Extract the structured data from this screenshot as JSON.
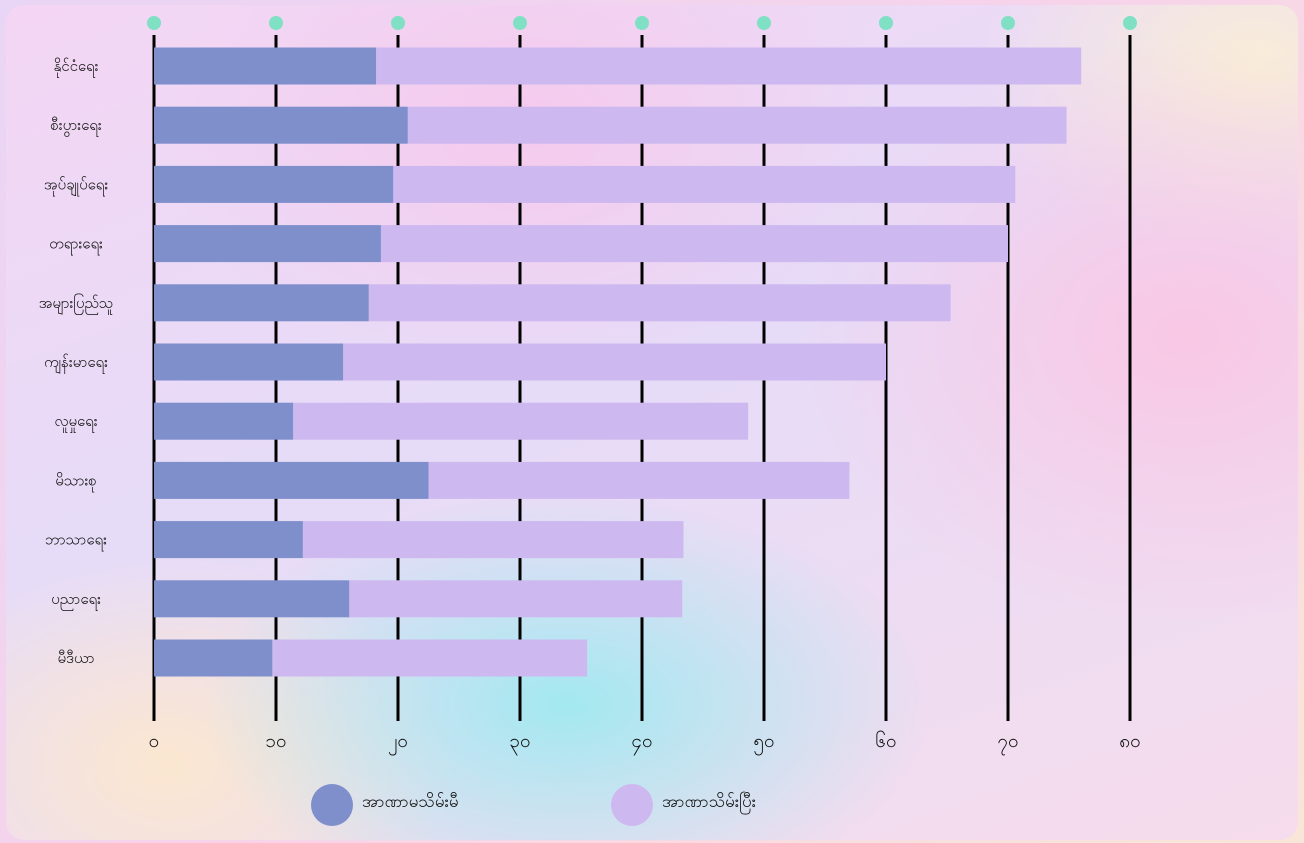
{
  "chart_data": {
    "type": "bar",
    "orientation": "horizontal",
    "stacked": true,
    "categories": [
      "နိုင်ငံရေး",
      "စီးပွားရေး",
      "အုပ်ချုပ်ရေး",
      "တရားရေး",
      "အများပြည်သူ",
      "ကျန်းမာရေး",
      "လူမှုရေး",
      "မိသားစု",
      "ဘာသာရေး",
      "ပညာရေး",
      "မီဒီယာ"
    ],
    "series": [
      {
        "name": "အာဏာမသိမ်းမီ",
        "values": [
          18.2,
          20.8,
          19.6,
          18.6,
          17.6,
          15.5,
          11.4,
          22.5,
          12.2,
          16.0,
          9.7
        ],
        "color": "#7e8fcc"
      },
      {
        "name": "အာဏာသိမ်းပြီး",
        "values": [
          57.8,
          54.0,
          51.0,
          51.4,
          47.7,
          44.5,
          37.3,
          34.5,
          31.2,
          27.3,
          25.8
        ],
        "color": "#cdb8f0"
      }
    ],
    "xlim": [
      0,
      80
    ],
    "xticks": [
      0,
      10,
      20,
      30,
      40,
      50,
      60,
      70,
      80
    ],
    "xtick_labels": [
      "၀",
      "၁၀",
      "၂၀",
      "၃၀",
      "၄၀",
      "၅၀",
      "၆၀",
      "၇၀",
      "၈၀"
    ],
    "grid": "vertical lines",
    "legend_position": "bottom",
    "tick_marker_color": "#7fe0c4",
    "xlabel": "",
    "ylabel": "",
    "title": ""
  }
}
